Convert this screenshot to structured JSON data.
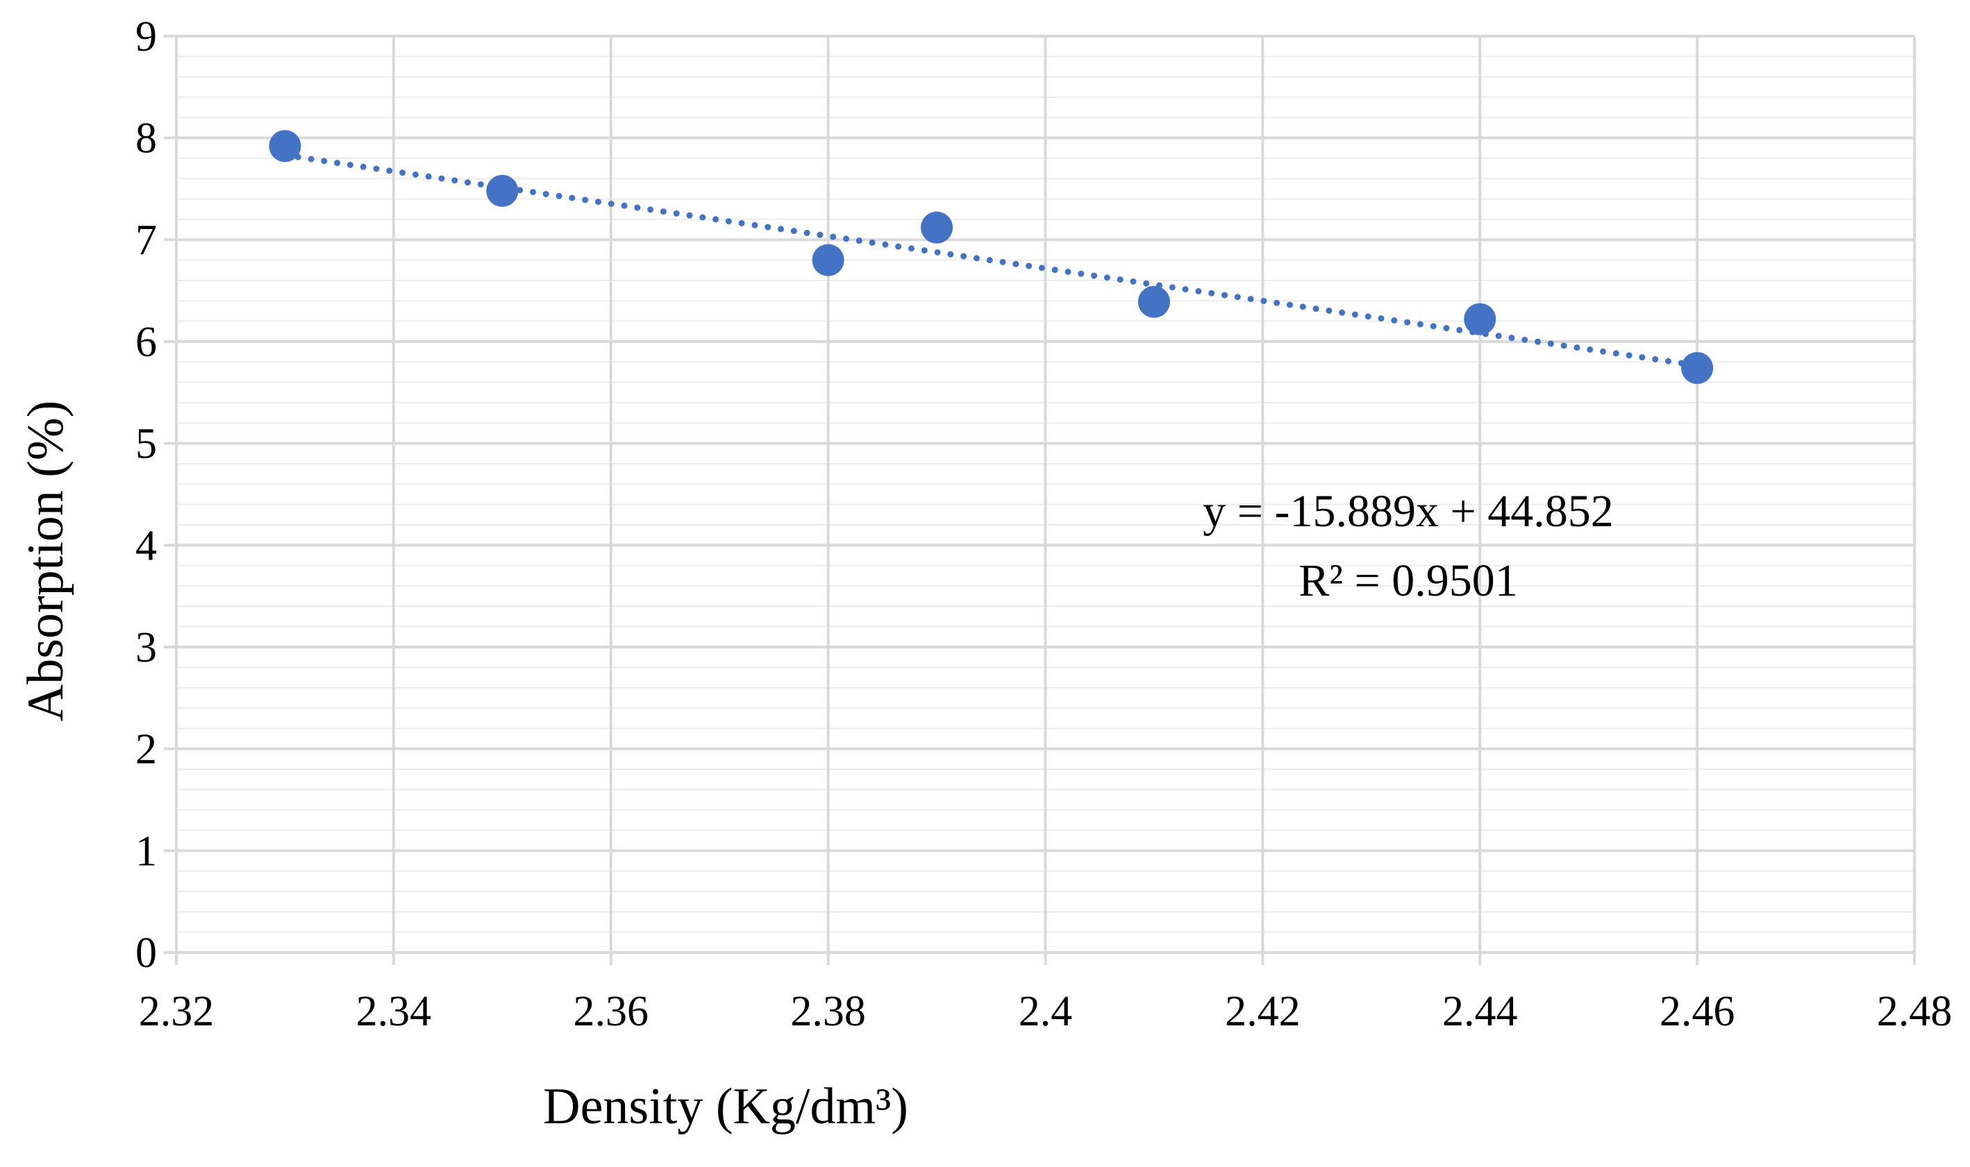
{
  "chart_data": {
    "type": "scatter",
    "title": "",
    "xlabel": "Density (Kg/dm³)",
    "ylabel": "Absorption (%)",
    "xlim": [
      2.32,
      2.48
    ],
    "ylim": [
      0,
      9
    ],
    "x_ticks": [
      2.32,
      2.34,
      2.36,
      2.38,
      2.4,
      2.42,
      2.44,
      2.46,
      2.48
    ],
    "x_tick_labels": [
      "2.32",
      "2.34",
      "2.36",
      "2.38",
      "2.4",
      "2.42",
      "2.44",
      "2.46",
      "2.48"
    ],
    "y_ticks": [
      0,
      1,
      2,
      3,
      4,
      5,
      6,
      7,
      8,
      9
    ],
    "y_tick_labels": [
      "0",
      "1",
      "2",
      "3",
      "4",
      "5",
      "6",
      "7",
      "8",
      "9"
    ],
    "grid": true,
    "minor_grid": true,
    "legend": "none",
    "series": [
      {
        "name": "Absorption",
        "color": "#4472C4",
        "x": [
          2.33,
          2.35,
          2.38,
          2.39,
          2.41,
          2.44,
          2.46
        ],
        "y": [
          7.92,
          7.48,
          6.8,
          7.12,
          6.39,
          6.22,
          5.74
        ]
      }
    ],
    "trendline": {
      "type": "linear",
      "style": "dotted",
      "color": "#4472C4",
      "slope": -15.889,
      "intercept": 44.852,
      "x_range": [
        2.33,
        2.46
      ],
      "equation_label": "y = -15.889x + 44.852",
      "r2_label": "R² = 0.9501"
    }
  }
}
